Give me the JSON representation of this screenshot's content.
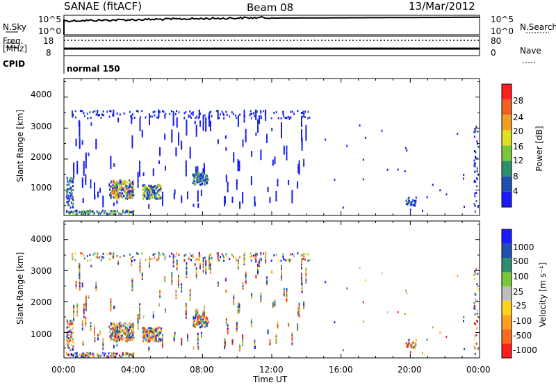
{
  "header": {
    "station": "SANAE (fitACF)",
    "beam": "Beam 08",
    "date": "13/Mar/2012"
  },
  "top_panels": {
    "nsky_label": "N.Sky",
    "nsky_ticks": [
      "10^5",
      "10^0"
    ],
    "nsearch_label": "N.Search",
    "nsearch_ticks": [
      "10^5",
      "10^0"
    ],
    "freq_label": "Freq.",
    "freq_unit": "[MHz]",
    "freq_ticks": [
      "18",
      "8"
    ],
    "nave_label": "Nave",
    "nave_ticks": [
      "80",
      "0"
    ],
    "cpid_label": "CPID",
    "cpid_value": "normal 150"
  },
  "colors": {
    "power_scale": [
      "#1a1aff",
      "#1f4fb0",
      "#2e8f6e",
      "#78c83c",
      "#e0e020",
      "#f0a020",
      "#f06020",
      "#ff1e1e"
    ],
    "velocity_scale": [
      "#ff1e1e",
      "#ff6a1e",
      "#ffa01e",
      "#ffd21e",
      "#bebebe",
      "#78c83c",
      "#2e8f6e",
      "#1f4fb0",
      "#1a1aff"
    ]
  },
  "chart_data": [
    {
      "type": "heatmap",
      "panel": "power",
      "ylabel": "Slant Range [km]",
      "yticks": [
        "1000",
        "2000",
        "3000",
        "4000"
      ],
      "ylim": [
        180,
        4600
      ],
      "xlim": [
        0,
        24
      ],
      "colorbar_label": "Power [dB]",
      "colorbar_ticks": [
        "4",
        "8",
        "12",
        "16",
        "20",
        "24",
        "28"
      ]
    },
    {
      "type": "heatmap",
      "panel": "velocity",
      "ylabel": "Slant Range [km]",
      "yticks": [
        "1000",
        "2000",
        "3000",
        "4000"
      ],
      "ylim": [
        180,
        4600
      ],
      "xlim": [
        0,
        24
      ],
      "colorbar_label": "Velocity [m s⁻¹]",
      "colorbar_ticks": [
        "1000",
        "500",
        "100",
        "25",
        "-25",
        "-100",
        "-500",
        "-1000"
      ]
    }
  ],
  "xaxis": {
    "ticks": [
      "00:00",
      "04:00",
      "08:00",
      "12:00",
      "16:00",
      "20:00",
      "00:00"
    ],
    "label": "Time UT"
  }
}
